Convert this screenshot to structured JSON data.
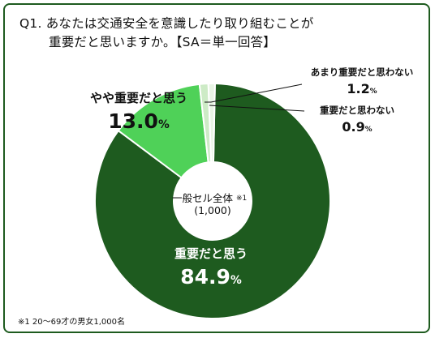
{
  "title": {
    "line1": "Q1. あなたは交通安全を意識したり取り組むことが",
    "line2": "重要だと思いますか。【SA＝単一回答】"
  },
  "chart_data": {
    "type": "pie",
    "categories": [
      "重要だと思う",
      "やや重要だと思う",
      "あまり重要だと思わない",
      "重要だと思わない"
    ],
    "values": [
      84.9,
      13.0,
      1.2,
      0.9
    ],
    "value_labels": [
      "84.9",
      "13.0",
      "1.2",
      "0.9"
    ],
    "unit": "%",
    "colors": [
      "#1e5b1f",
      "#4fd158",
      "#cdebc6",
      "#e8f5e4"
    ],
    "center_label": "一般セル全体",
    "center_note": "※1",
    "center_count": "(1,000)"
  },
  "footnote": "※1 20～69才の男女1,000名"
}
